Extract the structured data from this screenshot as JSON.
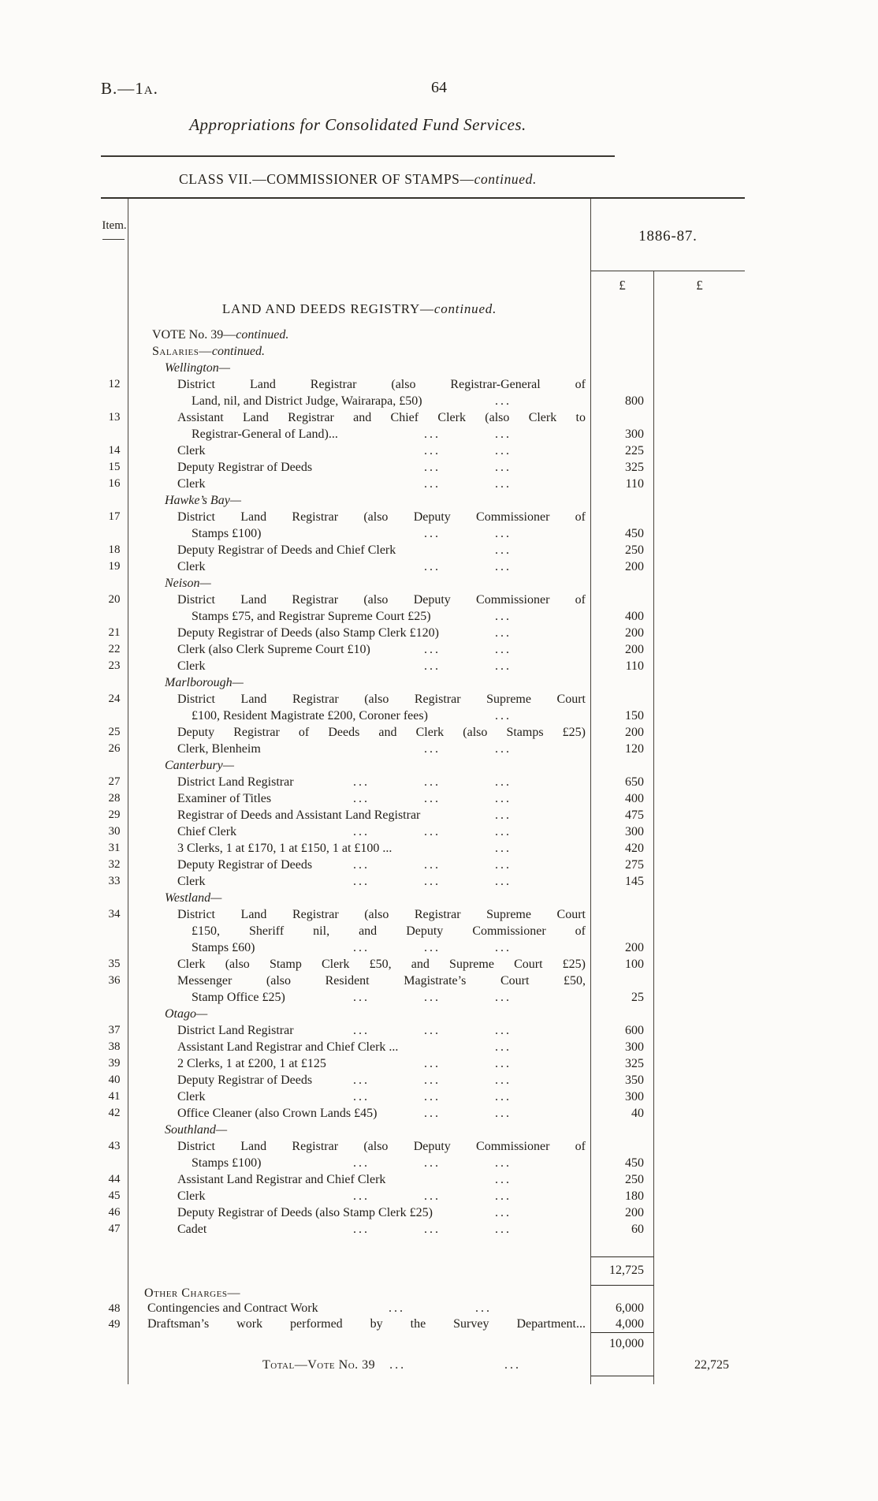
{
  "page": {
    "doc_ref": "B.—1a.",
    "page_number": "64",
    "title": "Appropriations for Consolidated Fund Services.",
    "class_heading": "CLASS VII.—COMMISSIONER OF STAMPS—",
    "class_heading_continued": "continued.",
    "ink_color": "#221e18",
    "paper_color": "#fcfbf9"
  },
  "table": {
    "item_col_header": "Item.",
    "year_header": "1886-87.",
    "currency_symbols": [
      "£",
      "£"
    ],
    "section_caption": "LAND AND DEEDS REGISTRY—",
    "section_caption_continued": "continued.",
    "dots_char": "...",
    "rows": [
      {
        "type": "label",
        "text": "VOTE No. 39—",
        "em": "continued.",
        "indent": 0
      },
      {
        "type": "label",
        "sc": true,
        "text": "Salaries—",
        "em": "continued.",
        "indent": 0
      },
      {
        "type": "region",
        "text": "Wellington—",
        "indent": 1
      },
      {
        "item": "12",
        "text": "District Land Registrar (also Registrar-General of",
        "indent": 2,
        "j": true
      },
      {
        "text": "Land, nil, and District Judge, Wairarapa, £50)",
        "indent": 3,
        "dots": 1,
        "a1": "800"
      },
      {
        "item": "13",
        "text": "Assistant Land Registrar and Chief Clerk (also Clerk to",
        "indent": 2,
        "j": true
      },
      {
        "text": "Registrar-General of Land)...",
        "indent": 3,
        "dots": 2,
        "a1": "300"
      },
      {
        "item": "14",
        "text": "Clerk",
        "indent": 2,
        "dots": 2,
        "a1": "225"
      },
      {
        "item": "15",
        "text": "Deputy Registrar of Deeds",
        "indent": 2,
        "dots": 2,
        "a1": "325"
      },
      {
        "item": "16",
        "text": "Clerk",
        "indent": 2,
        "dots": 2,
        "a1": "110"
      },
      {
        "type": "region",
        "text": "Hawke’s Bay—",
        "indent": 1
      },
      {
        "item": "17",
        "text": "District Land Registrar (also Deputy Commissioner of",
        "indent": 2,
        "j": true
      },
      {
        "text": "Stamps £100)",
        "indent": 3,
        "dots": 2,
        "a1": "450"
      },
      {
        "item": "18",
        "text": "Deputy Registrar of Deeds and Chief Clerk",
        "indent": 2,
        "dots": 1,
        "a1": "250"
      },
      {
        "item": "19",
        "text": "Clerk",
        "indent": 2,
        "dots": 2,
        "a1": "200"
      },
      {
        "type": "region",
        "text": "Neison—",
        "indent": 1
      },
      {
        "item": "20",
        "text": "District Land Registrar (also Deputy Commissioner of",
        "indent": 2,
        "j": true
      },
      {
        "text": "Stamps £75, and Registrar Supreme Court £25)",
        "indent": 3,
        "dots": 1,
        "a1": "400"
      },
      {
        "item": "21",
        "text": "Deputy Registrar of Deeds (also Stamp Clerk £120)",
        "indent": 2,
        "dots": 1,
        "a1": "200"
      },
      {
        "item": "22",
        "text": "Clerk (also Clerk Supreme Court £10)",
        "indent": 2,
        "dots": 2,
        "a1": "200"
      },
      {
        "item": "23",
        "text": "Clerk",
        "indent": 2,
        "dots": 2,
        "a1": "110"
      },
      {
        "type": "region",
        "text": "Marlborough—",
        "indent": 1
      },
      {
        "item": "24",
        "text": "District Land Registrar (also Registrar Supreme Court",
        "indent": 2,
        "j": true
      },
      {
        "text": "£100, Resident Magistrate £200, Coroner fees)",
        "indent": 3,
        "dots": 1,
        "a1": "150"
      },
      {
        "item": "25",
        "text": "Deputy Registrar of Deeds and Clerk (also Stamps £25)",
        "indent": 2,
        "j": true,
        "a1": "200"
      },
      {
        "item": "26",
        "text": "Clerk, Blenheim",
        "indent": 2,
        "dots": 2,
        "a1": "120"
      },
      {
        "type": "region",
        "text": "Canterbury—",
        "indent": 1
      },
      {
        "item": "27",
        "text": "District Land Registrar",
        "indent": 2,
        "dots": 3,
        "a1": "650"
      },
      {
        "item": "28",
        "text": "Examiner of Titles",
        "indent": 2,
        "dots": 3,
        "a1": "400"
      },
      {
        "item": "29",
        "text": "Registrar of Deeds and Assistant Land Registrar",
        "indent": 2,
        "dots": 1,
        "a1": "475"
      },
      {
        "item": "30",
        "text": "Chief Clerk",
        "indent": 2,
        "dots": 3,
        "a1": "300"
      },
      {
        "item": "31",
        "text": "3 Clerks, 1 at £170, 1 at £150, 1 at £100 ...",
        "indent": 2,
        "dots": 1,
        "a1": "420"
      },
      {
        "item": "32",
        "text": "Deputy Registrar of Deeds",
        "indent": 2,
        "dots": 3,
        "a1": "275"
      },
      {
        "item": "33",
        "text": "Clerk",
        "indent": 2,
        "dots": 3,
        "a1": "145"
      },
      {
        "type": "region",
        "text": "Westland—",
        "indent": 1
      },
      {
        "item": "34",
        "text": "District Land Registrar (also Registrar Supreme Court",
        "indent": 2,
        "j": true
      },
      {
        "text": "£150, Sheriff nil, and Deputy Commissioner of",
        "indent": 3,
        "j": true
      },
      {
        "text": "Stamps £60)",
        "indent": 3,
        "dots": 3,
        "a1": "200"
      },
      {
        "item": "35",
        "text": "Clerk (also Stamp Clerk £50, and Supreme Court £25)",
        "indent": 2,
        "j": true,
        "a1": "100"
      },
      {
        "item": "36",
        "text": "Messenger (also Resident Magistrate’s Court £50,",
        "indent": 2,
        "j": true
      },
      {
        "text": "Stamp Office £25)",
        "indent": 3,
        "dots": 3,
        "a1": "25"
      },
      {
        "type": "region",
        "text": "Otago—",
        "indent": 1
      },
      {
        "item": "37",
        "text": "District Land Registrar",
        "indent": 2,
        "dots": 3,
        "a1": "600"
      },
      {
        "item": "38",
        "text": "Assistant Land Registrar and Chief Clerk ...",
        "indent": 2,
        "dots": 1,
        "a1": "300"
      },
      {
        "item": "39",
        "text": "2 Clerks, 1 at £200, 1 at £125",
        "indent": 2,
        "dots": 2,
        "a1": "325"
      },
      {
        "item": "40",
        "text": "Deputy Registrar of Deeds",
        "indent": 2,
        "dots": 3,
        "a1": "350"
      },
      {
        "item": "41",
        "text": "Clerk",
        "indent": 2,
        "dots": 3,
        "a1": "300"
      },
      {
        "item": "42",
        "text": "Office Cleaner (also Crown Lands £45)",
        "indent": 2,
        "dots": 2,
        "a1": "40"
      },
      {
        "type": "region",
        "text": "Southland—",
        "indent": 1
      },
      {
        "item": "43",
        "text": "District Land Registrar (also Deputy Commissioner of",
        "indent": 2,
        "j": true
      },
      {
        "text": "Stamps £100)",
        "indent": 3,
        "dots": 3,
        "a1": "450"
      },
      {
        "item": "44",
        "text": "Assistant Land Registrar and Chief Clerk",
        "indent": 2,
        "dots": 1,
        "a1": "250"
      },
      {
        "item": "45",
        "text": "Clerk",
        "indent": 2,
        "dots": 3,
        "a1": "180"
      },
      {
        "item": "46",
        "text": "Deputy Registrar of Deeds (also Stamp Clerk £25)",
        "indent": 2,
        "dots": 1,
        "a1": "200"
      },
      {
        "item": "47",
        "text": "Cadet",
        "indent": 2,
        "dots": 3,
        "a1": "60"
      }
    ],
    "footer": {
      "salaries_subtotal": "12,725",
      "other_charges_label": "Other Charges—",
      "rows": [
        {
          "item": "48",
          "text": "Contingencies and Contract Work",
          "a1": "6,000"
        },
        {
          "item": "49",
          "text": "Draftsman’s work performed by the Survey Department...",
          "a1": "4,000"
        }
      ],
      "other_charges_subtotal": "10,000",
      "total_label": "Total—Vote No. 39",
      "total_dots": "...",
      "vote_total": "22,725"
    }
  }
}
